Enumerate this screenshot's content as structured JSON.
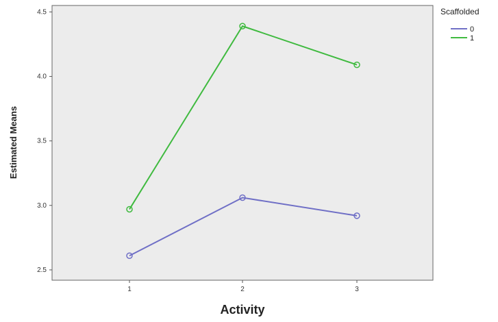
{
  "chart_data": {
    "type": "line",
    "xlabel": "Activity",
    "ylabel": "Estimated Means",
    "categories": [
      "1",
      "2",
      "3"
    ],
    "yticks": [
      "2.5",
      "3.0",
      "3.5",
      "4.0",
      "4.5"
    ],
    "ylim": [
      2.42,
      4.55
    ],
    "grid": false,
    "legend": {
      "title": "Scaffolded",
      "position": "top-right"
    },
    "series": [
      {
        "name": "0",
        "values": [
          2.61,
          3.06,
          2.92
        ],
        "color": "#6f6fc6"
      },
      {
        "name": "1",
        "values": [
          2.97,
          4.39,
          4.09
        ],
        "color": "#3fba3f"
      }
    ],
    "background": "#ececec"
  }
}
